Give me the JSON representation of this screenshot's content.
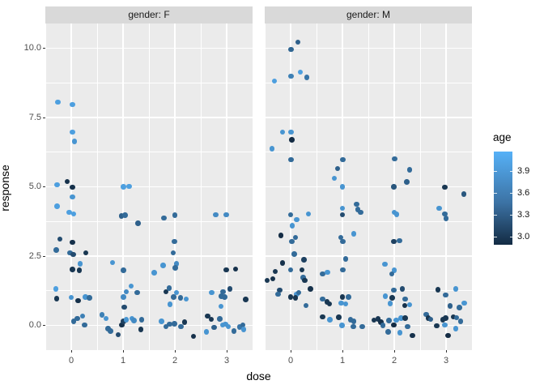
{
  "theme": {
    "panel_bg": "#EBEBEB",
    "strip_bg": "#D9D9D9",
    "grid_color": "#FFFFFF",
    "tick_label_color": "#4D4D4D",
    "text_color": "#000000",
    "background": "#FFFFFF"
  },
  "chart_data": {
    "type": "scatter",
    "title": "",
    "xlabel": "dose",
    "ylabel": "response",
    "facet_variable": "gender",
    "x_ticks": [
      "0",
      "1",
      "2",
      "3"
    ],
    "x_tick_values": [
      0,
      1,
      2,
      3
    ],
    "y_ticks": [
      "0.0",
      "2.5",
      "5.0",
      "7.5",
      "10.0"
    ],
    "y_tick_values": [
      0,
      2.5,
      5,
      7.5,
      10
    ],
    "x_range": [
      -0.5,
      3.5
    ],
    "y_range": [
      -0.85,
      10.9
    ],
    "grid": "white major and minor gridlines on gray panel",
    "legend": {
      "position": "right",
      "title": "age",
      "ticks": [
        "3.9",
        "3.6",
        "3.3",
        "3.0"
      ],
      "tick_values": [
        3.9,
        3.6,
        3.3,
        3.0
      ],
      "domain": [
        2.89,
        4.17
      ],
      "color_low": "#132B43",
      "color_high": "#56B1F7"
    },
    "point_format": [
      "dose_jittered",
      "response",
      "age"
    ],
    "facets": [
      {
        "label": "gender: F",
        "points": [
          [
            -0.26,
            8.05,
            4.0
          ],
          [
            0.02,
            7.97,
            4.0
          ],
          [
            0.02,
            6.98,
            4.0
          ],
          [
            0.06,
            6.64,
            3.9
          ],
          [
            -0.27,
            5.07,
            4.0
          ],
          [
            -0.08,
            5.19,
            2.95
          ],
          [
            0.02,
            4.99,
            2.95
          ],
          [
            1.01,
            5.0,
            4.0
          ],
          [
            1.12,
            5.02,
            4.0
          ],
          [
            0.02,
            4.63,
            3.9
          ],
          [
            -0.27,
            4.3,
            4.0
          ],
          [
            -0.04,
            4.08,
            4.0
          ],
          [
            0.05,
            4.02,
            4.0
          ],
          [
            0.97,
            3.95,
            3.4
          ],
          [
            1.04,
            3.97,
            3.5
          ],
          [
            1.29,
            3.68,
            3.4
          ],
          [
            1.79,
            3.88,
            3.5
          ],
          [
            2.0,
            3.98,
            3.5
          ],
          [
            2.79,
            3.99,
            3.8
          ],
          [
            2.99,
            3.99,
            3.8
          ],
          [
            -0.22,
            3.12,
            3.2
          ],
          [
            0.02,
            2.99,
            2.95
          ],
          [
            -0.29,
            2.72,
            3.5
          ],
          [
            -0.02,
            2.61,
            3.5
          ],
          [
            0.04,
            2.56,
            3.2
          ],
          [
            0.28,
            2.62,
            3.0
          ],
          [
            1.99,
            3.03,
            3.5
          ],
          [
            1.97,
            2.62,
            3.5
          ],
          [
            0.17,
            2.22,
            3.9
          ],
          [
            0.02,
            2.02,
            3.0
          ],
          [
            0.16,
            1.99,
            3.0
          ],
          [
            0.8,
            2.26,
            3.9
          ],
          [
            1.01,
            1.99,
            3.5
          ],
          [
            1.6,
            1.9,
            3.9
          ],
          [
            1.77,
            2.17,
            3.9
          ],
          [
            2.03,
            2.22,
            3.8
          ],
          [
            2.01,
            2.08,
            3.5
          ],
          [
            2.99,
            2.01,
            3.0
          ],
          [
            3.17,
            2.03,
            2.95
          ],
          [
            -0.3,
            1.32,
            4.0
          ],
          [
            1.16,
            1.42,
            3.9
          ],
          [
            1.06,
            1.22,
            3.8
          ],
          [
            1.27,
            1.19,
            3.5
          ],
          [
            1.83,
            1.22,
            3.0
          ],
          [
            1.89,
            1.34,
            3.5
          ],
          [
            2.03,
            1.19,
            3.9
          ],
          [
            2.71,
            1.19,
            3.9
          ],
          [
            2.93,
            1.22,
            3.5
          ],
          [
            3.06,
            1.31,
            3.2
          ],
          [
            -0.28,
            0.97,
            3.0
          ],
          [
            0.0,
            1.01,
            3.9
          ],
          [
            0.13,
            0.89,
            2.95
          ],
          [
            0.27,
            1.02,
            3.9
          ],
          [
            0.35,
            0.99,
            3.5
          ],
          [
            1.01,
            1.02,
            3.8
          ],
          [
            1.02,
            0.66,
            3.2
          ],
          [
            1.91,
            0.76,
            3.9
          ],
          [
            1.98,
            1.02,
            3.5
          ],
          [
            2.11,
            1.0,
            3.5
          ],
          [
            2.22,
            0.95,
            3.9
          ],
          [
            2.9,
            1.05,
            3.5
          ],
          [
            2.96,
            1.03,
            3.5
          ],
          [
            2.89,
            0.69,
            3.9
          ],
          [
            3.37,
            0.93,
            3.0
          ],
          [
            0.05,
            0.15,
            3.5
          ],
          [
            0.12,
            0.25,
            3.5
          ],
          [
            0.22,
            0.33,
            3.7
          ],
          [
            0.26,
            0.02,
            3.5
          ],
          [
            0.59,
            0.38,
            3.7
          ],
          [
            0.67,
            0.25,
            3.9
          ],
          [
            0.71,
            -0.11,
            3.5
          ],
          [
            0.76,
            -0.2,
            3.5
          ],
          [
            0.91,
            -0.33,
            3.2
          ],
          [
            0.98,
            0.02,
            2.95
          ],
          [
            1.01,
            0.14,
            3.1
          ],
          [
            1.06,
            0.21,
            3.9
          ],
          [
            1.17,
            0.25,
            3.9
          ],
          [
            1.21,
            0.18,
            3.8
          ],
          [
            1.36,
            0.2,
            3.5
          ],
          [
            1.34,
            -0.14,
            3.0
          ],
          [
            1.74,
            0.15,
            3.9
          ],
          [
            1.83,
            -0.04,
            3.5
          ],
          [
            1.9,
            0.04,
            3.5
          ],
          [
            1.99,
            0.06,
            3.5
          ],
          [
            2.12,
            -0.04,
            3.5
          ],
          [
            2.19,
            0.12,
            3.0
          ],
          [
            2.36,
            -0.4,
            2.95
          ],
          [
            2.61,
            -0.23,
            3.9
          ],
          [
            2.63,
            0.33,
            3.0
          ],
          [
            2.7,
            0.22,
            3.0
          ],
          [
            2.76,
            -0.08,
            3.4
          ],
          [
            2.87,
            0.23,
            3.5
          ],
          [
            2.92,
            0.02,
            3.9
          ],
          [
            2.98,
            0.05,
            3.9
          ],
          [
            3.03,
            -0.04,
            3.9
          ],
          [
            3.14,
            -0.2,
            3.5
          ],
          [
            3.25,
            -0.06,
            3.6
          ],
          [
            3.31,
            0.02,
            3.5
          ],
          [
            3.33,
            -0.14,
            3.9
          ]
        ]
      },
      {
        "label": "gender: M",
        "points": [
          [
            0.14,
            10.22,
            3.4
          ],
          [
            0.01,
            9.96,
            3.45
          ],
          [
            0.19,
            9.14,
            4.0
          ],
          [
            0.01,
            8.99,
            3.7
          ],
          [
            0.31,
            8.95,
            3.6
          ],
          [
            -0.31,
            8.81,
            4.0
          ],
          [
            -0.16,
            6.98,
            3.9
          ],
          [
            0.01,
            6.98,
            3.9
          ],
          [
            0.02,
            6.69,
            2.9
          ],
          [
            -0.36,
            6.37,
            3.9
          ],
          [
            0.01,
            5.98,
            3.5
          ],
          [
            1.01,
            5.98,
            3.5
          ],
          [
            0.91,
            5.66,
            3.4
          ],
          [
            0.84,
            5.31,
            3.9
          ],
          [
            1.0,
            5.0,
            3.9
          ],
          [
            2.01,
            6.01,
            3.5
          ],
          [
            2.3,
            5.62,
            3.5
          ],
          [
            2.24,
            5.18,
            3.4
          ],
          [
            1.99,
            5.0,
            3.3
          ],
          [
            2.98,
            4.98,
            3.0
          ],
          [
            3.34,
            4.73,
            3.3
          ],
          [
            0.0,
            3.99,
            3.5
          ],
          [
            0.12,
            3.82,
            3.9
          ],
          [
            0.34,
            4.02,
            3.9
          ],
          [
            0.03,
            3.6,
            3.9
          ],
          [
            1.0,
            4.23,
            3.9
          ],
          [
            1.0,
            3.99,
            3.2
          ],
          [
            1.27,
            4.37,
            3.5
          ],
          [
            1.3,
            4.18,
            3.5
          ],
          [
            1.35,
            4.08,
            3.5
          ],
          [
            2.0,
            4.08,
            3.9
          ],
          [
            2.05,
            4.0,
            3.9
          ],
          [
            2.87,
            4.23,
            3.9
          ],
          [
            2.98,
            4.02,
            3.5
          ],
          [
            3.0,
            3.86,
            3.5
          ],
          [
            -0.19,
            3.25,
            2.9
          ],
          [
            0.09,
            3.17,
            3.5
          ],
          [
            0.02,
            3.03,
            3.5
          ],
          [
            0.97,
            3.17,
            3.5
          ],
          [
            1.22,
            3.31,
            3.9
          ],
          [
            1.01,
            3.03,
            3.5
          ],
          [
            1.99,
            3.03,
            3.1
          ],
          [
            2.1,
            3.05,
            3.5
          ],
          [
            0.07,
            2.57,
            3.5
          ],
          [
            0.26,
            2.37,
            3.1
          ],
          [
            -0.16,
            2.25,
            2.95
          ],
          [
            1.06,
            2.4,
            3.5
          ],
          [
            -0.3,
            1.95,
            3.0
          ],
          [
            0.0,
            2.01,
            3.5
          ],
          [
            0.22,
            2.01,
            3.0
          ],
          [
            1.01,
            2.01,
            3.5
          ],
          [
            0.62,
            1.85,
            3.5
          ],
          [
            0.71,
            1.92,
            3.9
          ],
          [
            1.82,
            2.21,
            3.9
          ],
          [
            2.0,
            1.99,
            3.9
          ],
          [
            -0.34,
            1.68,
            2.95
          ],
          [
            -0.45,
            1.63,
            3.0
          ],
          [
            0.24,
            1.73,
            3.5
          ],
          [
            0.27,
            1.63,
            3.0
          ],
          [
            1.95,
            1.85,
            3.5
          ],
          [
            0.38,
            1.31,
            2.95
          ],
          [
            -0.21,
            1.27,
            3.2
          ],
          [
            -0.24,
            1.12,
            3.5
          ],
          [
            0.12,
            1.12,
            3.9
          ],
          [
            0.16,
            1.19,
            3.5
          ],
          [
            0.0,
            1.02,
            3.0
          ],
          [
            0.09,
            1.0,
            3.0
          ],
          [
            1.99,
            1.27,
            3.5
          ],
          [
            2.16,
            1.31,
            3.2
          ],
          [
            1.83,
            1.05,
            3.9
          ],
          [
            1.96,
            1.0,
            3.0
          ],
          [
            2.21,
            0.95,
            3.5
          ],
          [
            2.84,
            1.29,
            3.0
          ],
          [
            3.19,
            1.31,
            3.9
          ],
          [
            2.99,
            1.1,
            3.5
          ],
          [
            0.62,
            0.95,
            3.5
          ],
          [
            0.7,
            0.85,
            3.0
          ],
          [
            1.0,
            1.02,
            3.0
          ],
          [
            1.12,
            1.02,
            3.5
          ],
          [
            0.3,
            0.72,
            3.5
          ],
          [
            0.75,
            0.77,
            3.0
          ],
          [
            0.98,
            0.8,
            3.9
          ],
          [
            1.06,
            0.77,
            3.9
          ],
          [
            1.92,
            0.79,
            3.9
          ],
          [
            2.2,
            0.72,
            2.95
          ],
          [
            2.3,
            0.75,
            3.9
          ],
          [
            3.08,
            0.7,
            3.4
          ],
          [
            3.26,
            0.64,
            3.5
          ],
          [
            3.35,
            0.8,
            3.9
          ],
          [
            0.62,
            0.31,
            3.0
          ],
          [
            0.76,
            0.21,
            3.9
          ],
          [
            0.93,
            0.29,
            3.0
          ],
          [
            1.16,
            0.21,
            3.5
          ],
          [
            1.22,
            0.14,
            3.5
          ],
          [
            0.99,
            0.0,
            3.9
          ],
          [
            1.21,
            -0.05,
            3.5
          ],
          [
            1.38,
            -0.05,
            3.5
          ],
          [
            1.61,
            0.19,
            3.0
          ],
          [
            1.69,
            0.24,
            3.0
          ],
          [
            1.74,
            0.12,
            2.95
          ],
          [
            1.78,
            0.0,
            3.5
          ],
          [
            1.88,
            -0.24,
            3.5
          ],
          [
            1.9,
            0.17,
            3.5
          ],
          [
            1.99,
            0.02,
            2.9
          ],
          [
            2.04,
            0.19,
            3.9
          ],
          [
            2.13,
            0.27,
            3.9
          ],
          [
            2.11,
            -0.27,
            3.9
          ],
          [
            2.21,
            0.27,
            3.0
          ],
          [
            2.26,
            -0.05,
            3.5
          ],
          [
            2.35,
            -0.37,
            2.95
          ],
          [
            2.62,
            0.4,
            3.5
          ],
          [
            2.66,
            0.27,
            3.0
          ],
          [
            2.7,
            0.22,
            3.4
          ],
          [
            2.82,
            -0.02,
            3.0
          ],
          [
            2.94,
            0.21,
            3.0
          ],
          [
            2.99,
            0.26,
            3.0
          ],
          [
            2.98,
            0.02,
            3.9
          ],
          [
            3.14,
            0.31,
            3.0
          ],
          [
            3.2,
            0.28,
            3.5
          ],
          [
            3.28,
            0.14,
            3.5
          ],
          [
            3.19,
            -0.12,
            3.9
          ],
          [
            3.04,
            -0.37,
            2.9
          ]
        ]
      }
    ]
  }
}
